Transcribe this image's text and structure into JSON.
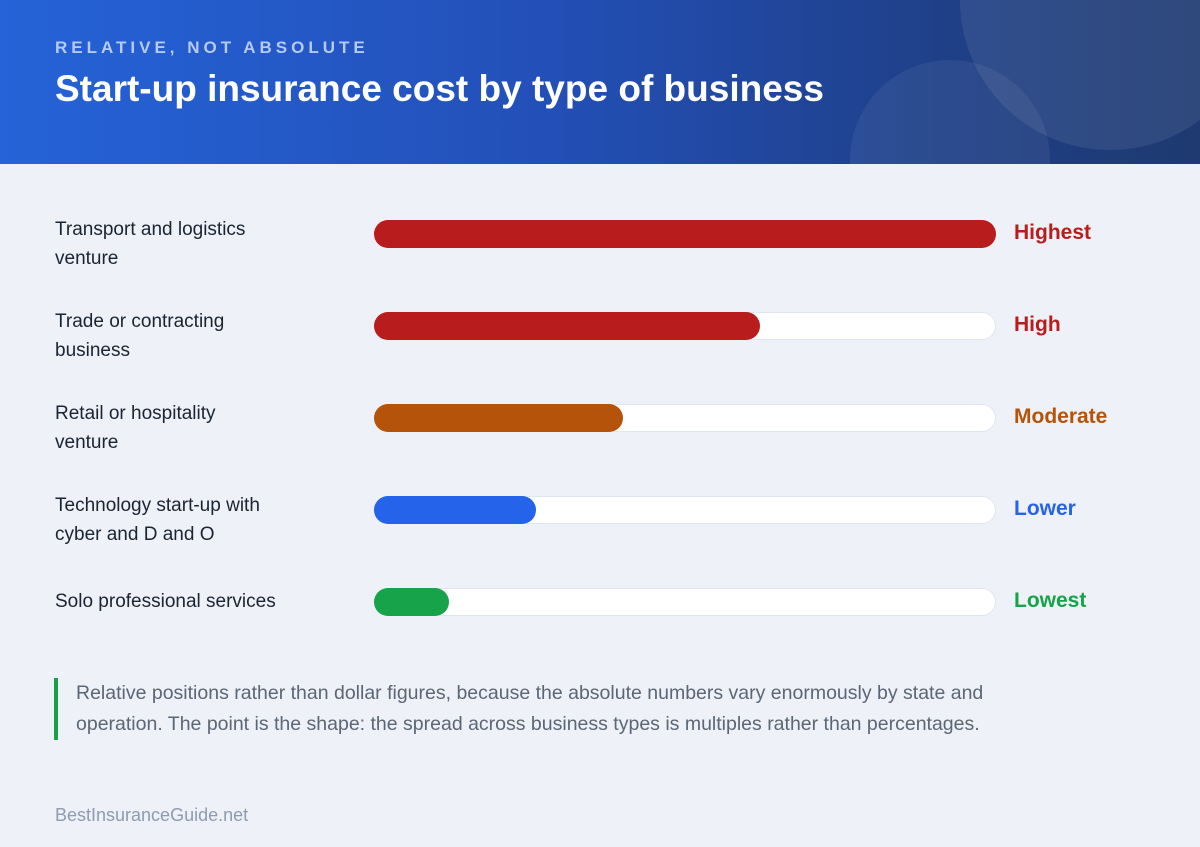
{
  "header": {
    "eyebrow": "RELATIVE, NOT ABSOLUTE",
    "title": "Start-up insurance cost by type of business"
  },
  "chart_data": {
    "type": "bar",
    "orientation": "horizontal",
    "value_scale": "relative (0 to 1)",
    "categories": [
      "Transport and logistics venture",
      "Trade or contracting business",
      "Retail or hospitality venture",
      "Technology start-up with cyber and D and O",
      "Solo professional services"
    ],
    "values": [
      1.0,
      0.62,
      0.4,
      0.26,
      0.12
    ],
    "levels": [
      "Highest",
      "High",
      "Moderate",
      "Lower",
      "Lowest"
    ],
    "colors": [
      "#b91c1c",
      "#b91c1c",
      "#b45309",
      "#2563eb",
      "#16a34a"
    ],
    "grid": false,
    "legend": "none"
  },
  "rows": [
    {
      "label_line1": "Transport and logistics",
      "label_line2": "venture"
    },
    {
      "label_line1": "Trade or contracting",
      "label_line2": "business"
    },
    {
      "label_line1": "Retail or hospitality",
      "label_line2": "venture"
    },
    {
      "label_line1": "Technology start-up with",
      "label_line2": "cyber and D and O"
    },
    {
      "label_line1": "Solo professional services",
      "label_line2": ""
    }
  ],
  "note": {
    "text": "Relative positions rather than dollar figures, because the absolute numbers vary enormously by state and operation. The point is the shape: the spread across business types is multiples rather than percentages.",
    "accent_color": "#16a34a"
  },
  "footer": {
    "source": "BestInsuranceGuide.net"
  }
}
